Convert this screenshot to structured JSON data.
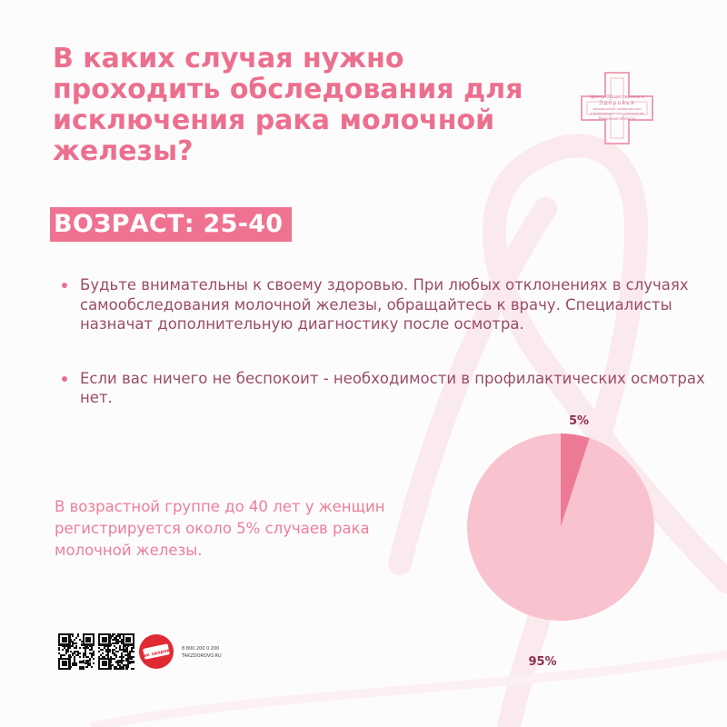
{
  "title": "В каких случая нужно проходить обследования для исключения рака молочной железы?",
  "logo": {
    "line1": "Центр Общественного",
    "line2": "Здоровья",
    "line3": "медицинской профилактики",
    "line4": "и информационных технологий",
    "line5": "Рязанской области"
  },
  "age_badge": "ВОЗРАСТ: 25-40",
  "bullets": [
    "Будьте внимательны к своему здоровью. При любых отклонениях в случаях самообследования молочной железы, обращайтесь к врачу. Специалисты назначат дополнительную диагностику после осмотра.",
    "Если вас ничего не беспокоит - необходимости в профилактических осмотрах нет."
  ],
  "stat_text": "В возрастной группе до 40 лет у женщин регистрируется около 5% случаев рака молочной железы.",
  "footer": {
    "badge_label": "Так здорово",
    "phone": "8 800 200 0 200",
    "site": "TAKZDOROVO.RU"
  },
  "colors": {
    "accent": "#ec6f8e",
    "pie_small": "#ed7a95",
    "pie_large": "#f8c3cf",
    "label": "#8c2f4d"
  },
  "chart_data": {
    "type": "pie",
    "labels": [
      "5%",
      "95%"
    ],
    "values": [
      5,
      95
    ]
  }
}
